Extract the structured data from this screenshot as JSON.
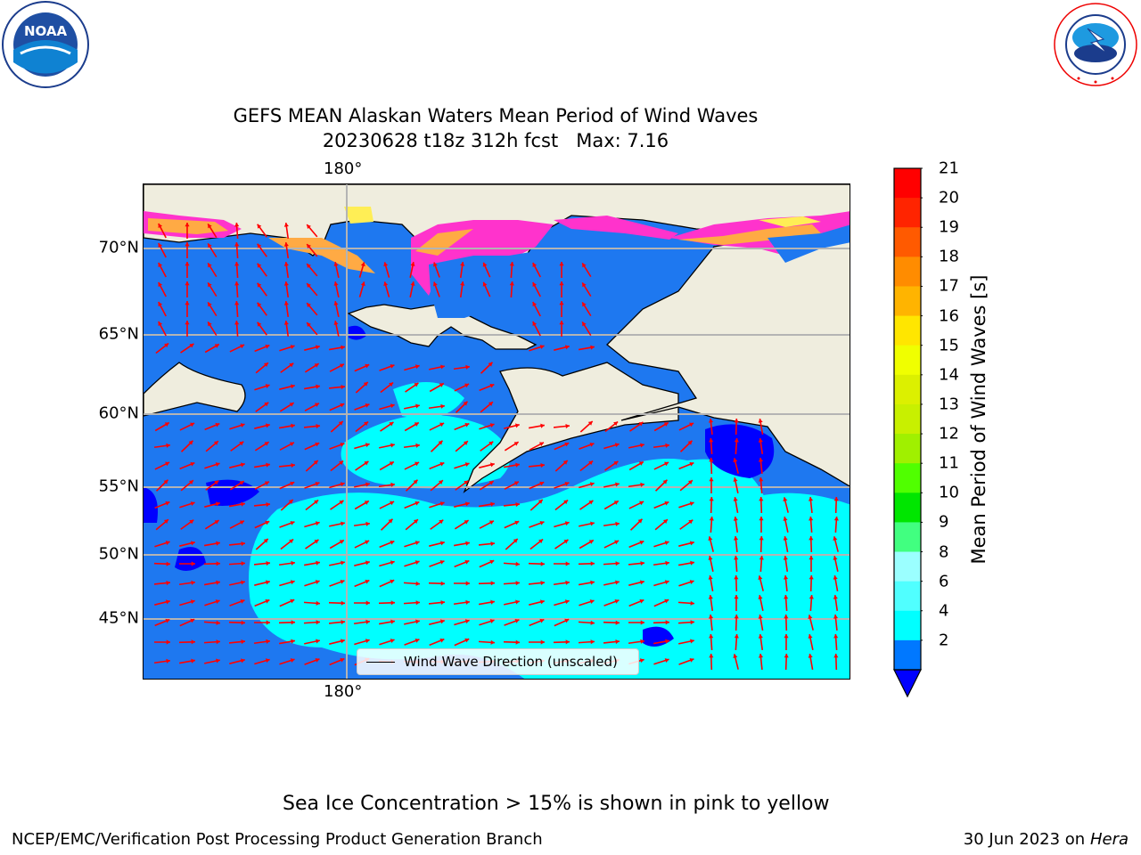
{
  "header": {
    "title_line1": "GEFS MEAN Alaskan Waters Mean Period of Wind Waves",
    "title_line2": "20230628 t18z 312h fcst   Max: 7.16"
  },
  "logos": {
    "noaa": {
      "text": "NOAA",
      "ring_text": "NATIONAL OCEANIC AND ATMOSPHERIC ADMINISTRATION · U.S. DEPARTMENT OF COMMERCE"
    },
    "nws": {
      "ring_text": "NATIONAL WEATHER SERVICE"
    }
  },
  "map": {
    "lon_label_top": "180°",
    "lon_label_bottom": "180°",
    "lat_labels": [
      "70°N",
      "65°N",
      "60°N",
      "55°N",
      "50°N",
      "45°N"
    ],
    "legend_label": "Wind Wave Direction (unscaled)",
    "colors": {
      "land": "#efedde",
      "ocean_deep": "#1e78f0",
      "ocean_light": "#00ffff",
      "ocean_dark": "#0000ff",
      "ice_pink": "#ff33cc",
      "ice_orange": "#ffaa44",
      "ice_yellow": "#ffee55",
      "arrow": "#ff0000",
      "grid": "#b4b4b4"
    }
  },
  "colorbar": {
    "title": "Mean Period of Wind Waves [s]",
    "ticks": [
      "21",
      "20",
      "19",
      "18",
      "17",
      "16",
      "15",
      "14",
      "13",
      "12",
      "11",
      "10",
      "9",
      "8",
      "6",
      "4",
      "2"
    ],
    "colors": [
      "#ff0000",
      "#ff2400",
      "#ff5a00",
      "#ff8c00",
      "#ffb400",
      "#ffe600",
      "#f0ff00",
      "#dcf000",
      "#c8f000",
      "#a0f000",
      "#50ff00",
      "#00e600",
      "#41ff80",
      "#9bffff",
      "#50ffff",
      "#00ffff",
      "#0078ff"
    ],
    "under_color": "#0000ff"
  },
  "notes": {
    "sea_ice": "Sea Ice Concentration > 15% is shown in pink to yellow"
  },
  "footer": {
    "left": "NCEP/EMC/Verification Post Processing Product Generation Branch",
    "date": "30 Jun 2023 on",
    "machine": "Hera"
  }
}
